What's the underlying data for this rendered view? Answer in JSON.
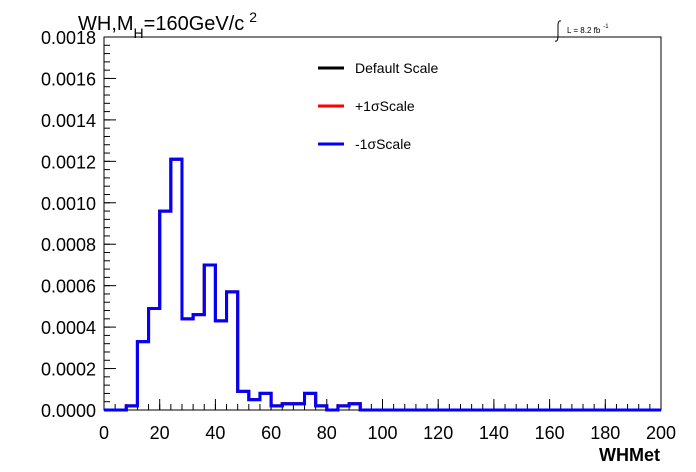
{
  "header": {
    "title_main": "WH,M",
    "title_sub": "H",
    "title_rest": "=160GeV/c",
    "title_sup": "2",
    "lumi_text": "L = 8.2 fb",
    "lumi_sup": "-1"
  },
  "chart_data": {
    "type": "line",
    "xlabel": "WHMet",
    "ylabel": "",
    "xlim": [
      0,
      200
    ],
    "ylim": [
      0,
      0.0018
    ],
    "x_ticks": [
      "0",
      "20",
      "40",
      "60",
      "80",
      "100",
      "120",
      "140",
      "160",
      "180",
      "200"
    ],
    "y_ticks": [
      "0.0000",
      "0.0002",
      "0.0004",
      "0.0006",
      "0.0008",
      "0.0010",
      "0.0012",
      "0.0014",
      "0.0016",
      "0.0018"
    ],
    "legend_position": "top-right",
    "bin_width": 4,
    "x_edges": [
      0,
      4,
      8,
      12,
      16,
      20,
      24,
      28,
      32,
      36,
      40,
      44,
      48,
      52,
      56,
      60,
      64,
      68,
      72,
      76,
      80,
      84,
      88,
      92,
      96,
      100,
      104,
      108,
      112,
      116,
      120,
      124,
      128,
      132,
      136,
      140,
      144,
      148,
      152,
      156,
      160,
      164,
      168,
      172,
      176,
      180,
      184,
      188,
      192,
      196,
      200
    ],
    "series": [
      {
        "name": "Default Scale",
        "color": "#000000",
        "values": [
          0,
          0,
          2e-05,
          0.00033,
          0.00049,
          0.00096,
          0.00121,
          0.00044,
          0.00046,
          0.0007,
          0.00043,
          0.00057,
          9e-05,
          5e-05,
          8e-05,
          2e-05,
          3e-05,
          3e-05,
          8e-05,
          2e-05,
          0,
          2e-05,
          3e-05,
          0,
          0,
          0,
          0,
          0,
          0,
          0,
          0,
          0,
          0,
          0,
          0,
          0,
          0,
          0,
          0,
          0,
          0,
          0,
          0,
          0,
          0,
          0,
          0,
          0,
          0,
          0
        ]
      },
      {
        "name": "+1σScale",
        "color": "#ff0000",
        "values": [
          0,
          0,
          2e-05,
          0.00033,
          0.00049,
          0.00096,
          0.00121,
          0.00044,
          0.00046,
          0.0007,
          0.00043,
          0.00057,
          9e-05,
          5e-05,
          8e-05,
          2e-05,
          3e-05,
          3e-05,
          8e-05,
          2e-05,
          0,
          2e-05,
          3e-05,
          0,
          0,
          0,
          0,
          0,
          0,
          0,
          0,
          0,
          0,
          0,
          0,
          0,
          0,
          0,
          0,
          0,
          0,
          0,
          0,
          0,
          0,
          0,
          0,
          0,
          0,
          0
        ]
      },
      {
        "name": "-1σScale",
        "color": "#0000ff",
        "values": [
          0,
          0,
          2e-05,
          0.00033,
          0.00049,
          0.00096,
          0.00121,
          0.00044,
          0.00046,
          0.0007,
          0.00043,
          0.00057,
          9e-05,
          5e-05,
          8e-05,
          2e-05,
          3e-05,
          3e-05,
          8e-05,
          2e-05,
          0,
          2e-05,
          3e-05,
          0,
          0,
          0,
          0,
          0,
          0,
          0,
          0,
          0,
          0,
          0,
          0,
          0,
          0,
          0,
          0,
          0,
          0,
          0,
          0,
          0,
          0,
          0,
          0,
          0,
          0,
          0
        ]
      }
    ]
  }
}
